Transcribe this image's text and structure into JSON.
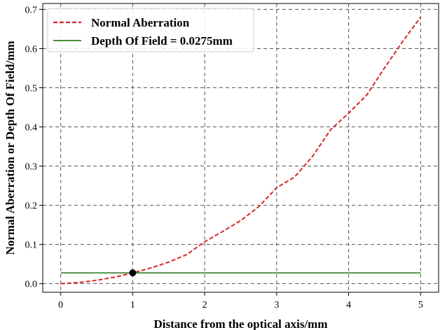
{
  "chart_data": {
    "type": "line",
    "xlabel": "Distance from the optical axis/mm",
    "ylabel": "Normal Aberration or Depth Of Field/mm",
    "xlim": [
      -0.25,
      5.25
    ],
    "ylim": [
      -0.022,
      0.715
    ],
    "x_ticks": [
      0,
      1,
      2,
      3,
      4,
      5
    ],
    "y_ticks": [
      0.0,
      0.1,
      0.2,
      0.3,
      0.4,
      0.5,
      0.6,
      0.7
    ],
    "x_tick_labels": [
      "0",
      "1",
      "2",
      "3",
      "4",
      "5"
    ],
    "y_tick_labels": [
      "0.0",
      "0.1",
      "0.2",
      "0.3",
      "0.4",
      "0.5",
      "0.6",
      "0.7"
    ],
    "grid": true,
    "legend_position": "top-left",
    "series": [
      {
        "name": "Normal Aberration",
        "style": "dashed",
        "color": "#d62728",
        "x": [
          0,
          0.25,
          0.5,
          0.75,
          1.0,
          1.25,
          1.5,
          1.75,
          2.0,
          2.25,
          2.5,
          2.75,
          3.0,
          3.25,
          3.5,
          3.75,
          4.0,
          4.25,
          4.5,
          4.75,
          5.0
        ],
        "y": [
          0,
          0.0027,
          0.0085,
          0.0165,
          0.0272,
          0.04,
          0.055,
          0.074,
          0.107,
          0.133,
          0.161,
          0.196,
          0.245,
          0.272,
          0.325,
          0.393,
          0.435,
          0.481,
          0.551,
          0.618,
          0.68
        ]
      },
      {
        "name": "Depth Of Field = 0.0275mm",
        "style": "solid",
        "color": "#2e7d1f",
        "x": [
          0,
          5
        ],
        "y": [
          0.0275,
          0.0275
        ]
      }
    ],
    "markers": [
      {
        "x": 1.0,
        "y": 0.0275,
        "color": "#000000"
      }
    ]
  }
}
